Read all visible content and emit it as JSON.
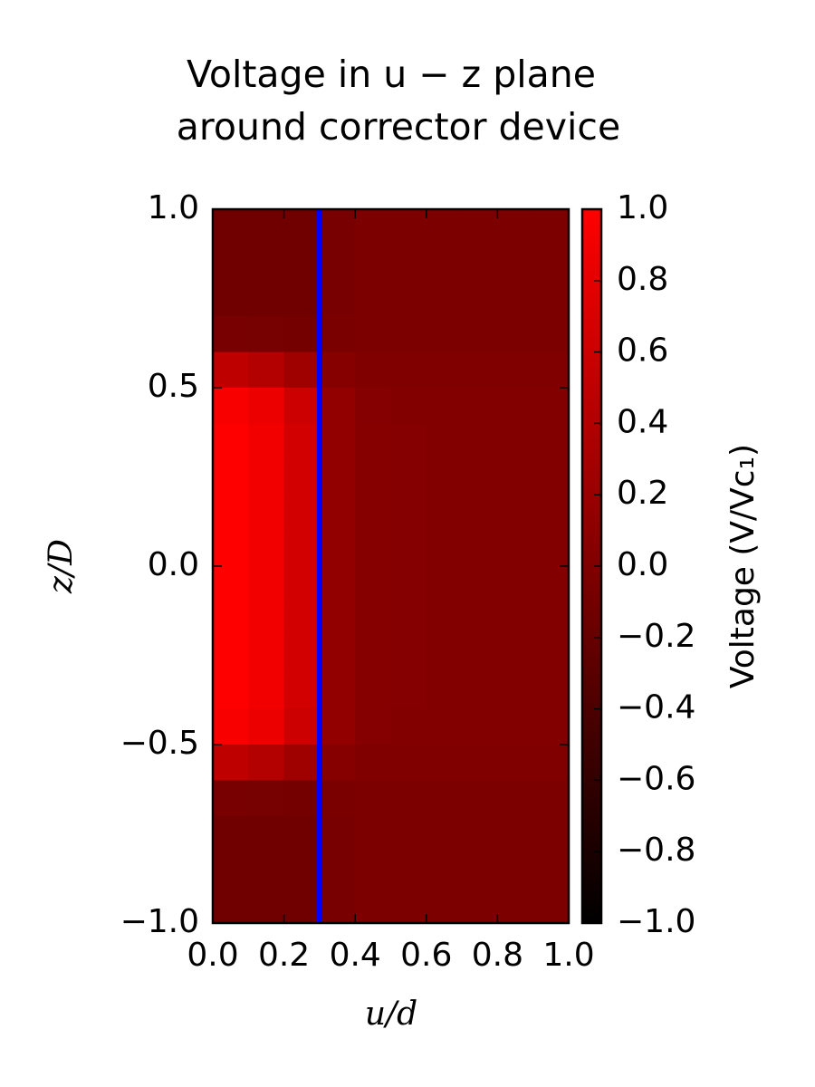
{
  "chart_data": {
    "type": "heatmap",
    "title": [
      "Voltage in u − z plane",
      "around corrector device"
    ],
    "xlabel": "u/d",
    "ylabel": "z/D",
    "colorbar_label": "Voltage (V/Vc₁)",
    "colormap": [
      "#000000",
      "#ff0000"
    ],
    "clim": [
      -1,
      1
    ],
    "xlim": [
      0,
      1
    ],
    "ylim": [
      -1,
      1
    ],
    "xticks": [
      {
        "value": 0,
        "label": "0.0"
      },
      {
        "value": 0.2,
        "label": "0.2"
      },
      {
        "value": 0.4,
        "label": "0.4"
      },
      {
        "value": 0.6,
        "label": "0.6"
      },
      {
        "value": 0.8,
        "label": "0.8"
      },
      {
        "value": 1,
        "label": "1.0"
      }
    ],
    "yticks": [
      {
        "value": -1,
        "label": "−1.0"
      },
      {
        "value": -0.5,
        "label": "−0.5"
      },
      {
        "value": 0,
        "label": "0.0"
      },
      {
        "value": 0.5,
        "label": "0.5"
      },
      {
        "value": 1,
        "label": "1.0"
      }
    ],
    "cticks": [
      {
        "value": -1,
        "label": "−1.0"
      },
      {
        "value": -0.8,
        "label": "−0.8"
      },
      {
        "value": -0.6,
        "label": "−0.6"
      },
      {
        "value": -0.4,
        "label": "−0.4"
      },
      {
        "value": -0.2,
        "label": "−0.2"
      },
      {
        "value": 0,
        "label": "0.0"
      },
      {
        "value": 0.2,
        "label": "0.2"
      },
      {
        "value": 0.4,
        "label": "0.4"
      },
      {
        "value": 0.6,
        "label": "0.6"
      },
      {
        "value": 0.8,
        "label": "0.8"
      },
      {
        "value": 1,
        "label": "1.0"
      }
    ],
    "vline": {
      "x": 0.3,
      "color": "#0000ff"
    },
    "x": [
      0.05,
      0.15,
      0.25,
      0.35,
      0.45,
      0.55,
      0.65,
      0.75,
      0.85,
      0.95
    ],
    "y": [
      0.95,
      0.85,
      0.75,
      0.65,
      0.55,
      0.45,
      0.35,
      0.25,
      0.15,
      0.05,
      -0.05,
      -0.15,
      -0.25,
      -0.35,
      -0.45,
      -0.55,
      -0.65,
      -0.75,
      -0.85,
      -0.95
    ],
    "z": [
      [
        -0.12,
        -0.12,
        -0.12,
        -0.05,
        -0.02,
        -0.02,
        -0.02,
        -0.02,
        -0.02,
        -0.02
      ],
      [
        -0.12,
        -0.12,
        -0.12,
        -0.05,
        -0.02,
        -0.02,
        -0.02,
        -0.02,
        -0.02,
        -0.02
      ],
      [
        -0.12,
        -0.12,
        -0.12,
        -0.05,
        -0.02,
        -0.02,
        -0.02,
        -0.02,
        -0.02,
        -0.02
      ],
      [
        -0.05,
        -0.07,
        -0.08,
        -0.04,
        -0.02,
        -0.02,
        -0.02,
        -0.02,
        -0.02,
        -0.02
      ],
      [
        0.5,
        0.4,
        0.25,
        0.05,
        0,
        0,
        0,
        0,
        0,
        0
      ],
      [
        0.95,
        0.85,
        0.6,
        0.15,
        0.04,
        0.03,
        0.03,
        0.02,
        0.02,
        0.02
      ],
      [
        1,
        0.9,
        0.65,
        0.15,
        0.05,
        0.04,
        0.03,
        0.03,
        0.02,
        0.02
      ],
      [
        1,
        0.9,
        0.65,
        0.15,
        0.05,
        0.04,
        0.03,
        0.03,
        0.02,
        0.02
      ],
      [
        1,
        0.9,
        0.65,
        0.15,
        0.05,
        0.04,
        0.03,
        0.03,
        0.02,
        0.02
      ],
      [
        1,
        0.9,
        0.65,
        0.15,
        0.05,
        0.04,
        0.03,
        0.03,
        0.02,
        0.02
      ],
      [
        1,
        0.9,
        0.65,
        0.15,
        0.05,
        0.04,
        0.03,
        0.03,
        0.02,
        0.02
      ],
      [
        1,
        0.9,
        0.65,
        0.15,
        0.05,
        0.04,
        0.03,
        0.03,
        0.02,
        0.02
      ],
      [
        1,
        0.9,
        0.65,
        0.15,
        0.05,
        0.04,
        0.03,
        0.03,
        0.02,
        0.02
      ],
      [
        1,
        0.9,
        0.65,
        0.15,
        0.05,
        0.04,
        0.03,
        0.03,
        0.02,
        0.02
      ],
      [
        0.95,
        0.85,
        0.6,
        0.15,
        0.04,
        0.03,
        0.03,
        0.02,
        0.02,
        0.02
      ],
      [
        0.5,
        0.4,
        0.25,
        0.05,
        0,
        0,
        0,
        0,
        0,
        0
      ],
      [
        -0.05,
        -0.07,
        -0.08,
        -0.04,
        -0.02,
        -0.02,
        -0.02,
        -0.02,
        -0.02,
        -0.02
      ],
      [
        -0.12,
        -0.12,
        -0.12,
        -0.05,
        -0.02,
        -0.02,
        -0.02,
        -0.02,
        -0.02,
        -0.02
      ],
      [
        -0.12,
        -0.12,
        -0.12,
        -0.05,
        -0.02,
        -0.02,
        -0.02,
        -0.02,
        -0.02,
        -0.02
      ],
      [
        -0.12,
        -0.12,
        -0.12,
        -0.05,
        -0.02,
        -0.02,
        -0.02,
        -0.02,
        -0.02,
        -0.02
      ]
    ]
  }
}
